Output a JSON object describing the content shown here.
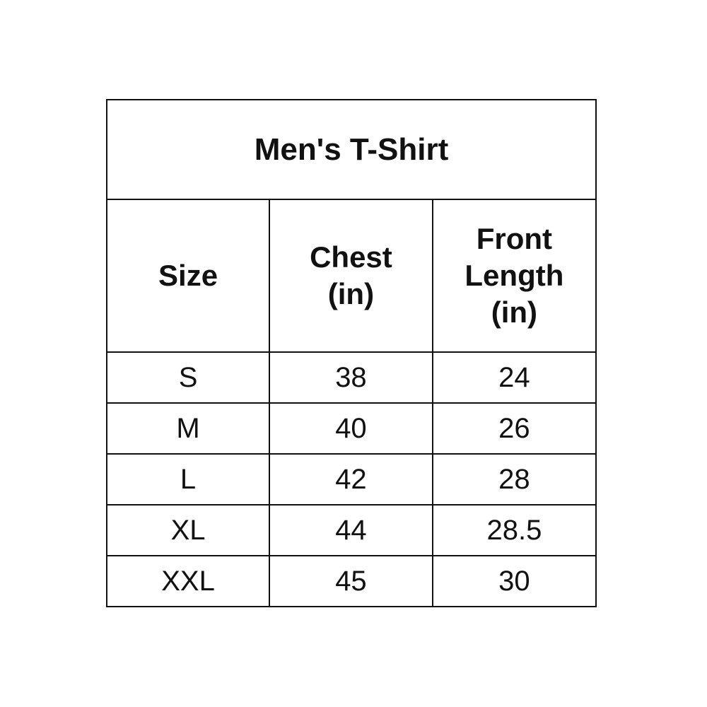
{
  "title": "Men's T-Shirt",
  "columns": [
    "Size",
    "Chest\n(in)",
    "Front\nLength\n(in)"
  ],
  "rows": [
    [
      "S",
      "38",
      "24"
    ],
    [
      "M",
      "40",
      "26"
    ],
    [
      "L",
      "42",
      "28"
    ],
    [
      "XL",
      "44",
      "28.5"
    ],
    [
      "XXL",
      "45",
      "30"
    ]
  ]
}
